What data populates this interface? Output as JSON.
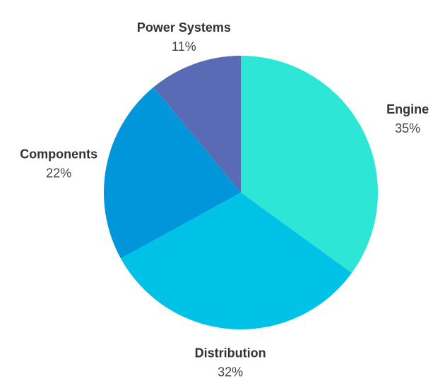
{
  "chart_data": {
    "type": "pie",
    "title": "",
    "legend": "none",
    "slices": [
      {
        "label": "Engine",
        "value": 35,
        "display": "35%",
        "color": "#2ee6d6"
      },
      {
        "label": "Distribution",
        "value": 32,
        "display": "32%",
        "color": "#00c2e6"
      },
      {
        "label": "Components",
        "value": 22,
        "display": "22%",
        "color": "#0096d9"
      },
      {
        "label": "Power Systems",
        "value": 11,
        "display": "11%",
        "color": "#5a6bb5"
      }
    ]
  }
}
